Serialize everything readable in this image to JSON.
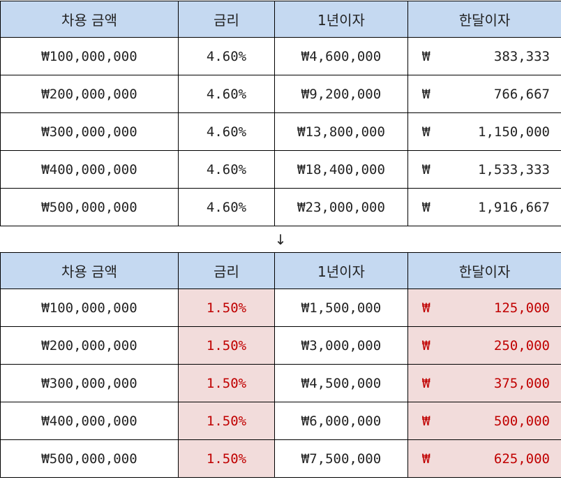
{
  "top_table": {
    "headers": [
      "차용 금액",
      "금리",
      "1년이자",
      "한달이자"
    ],
    "rows": [
      {
        "amount": "₩100,000,000",
        "rate": "4.60%",
        "yearly": "₩4,600,000",
        "currency": "₩",
        "monthly": "383,333"
      },
      {
        "amount": "₩200,000,000",
        "rate": "4.60%",
        "yearly": "₩9,200,000",
        "currency": "₩",
        "monthly": "766,667"
      },
      {
        "amount": "₩300,000,000",
        "rate": "4.60%",
        "yearly": "₩13,800,000",
        "currency": "₩",
        "monthly": "1,150,000"
      },
      {
        "amount": "₩400,000,000",
        "rate": "4.60%",
        "yearly": "₩18,400,000",
        "currency": "₩",
        "monthly": "1,533,333"
      },
      {
        "amount": "₩500,000,000",
        "rate": "4.60%",
        "yearly": "₩23,000,000",
        "currency": "₩",
        "monthly": "1,916,667"
      }
    ]
  },
  "arrow": "↓",
  "bottom_table": {
    "headers": [
      "차용 금액",
      "금리",
      "1년이자",
      "한달이자"
    ],
    "rows": [
      {
        "amount": "₩100,000,000",
        "rate": "1.50%",
        "yearly": "₩1,500,000",
        "currency": "₩",
        "monthly": "125,000"
      },
      {
        "amount": "₩200,000,000",
        "rate": "1.50%",
        "yearly": "₩3,000,000",
        "currency": "₩",
        "monthly": "250,000"
      },
      {
        "amount": "₩300,000,000",
        "rate": "1.50%",
        "yearly": "₩4,500,000",
        "currency": "₩",
        "monthly": "375,000"
      },
      {
        "amount": "₩400,000,000",
        "rate": "1.50%",
        "yearly": "₩6,000,000",
        "currency": "₩",
        "monthly": "500,000"
      },
      {
        "amount": "₩500,000,000",
        "rate": "1.50%",
        "yearly": "₩7,500,000",
        "currency": "₩",
        "monthly": "625,000"
      }
    ]
  },
  "colors": {
    "header_bg": "#c5d9f1",
    "highlight_bg": "#f2dcdb",
    "highlight_text": "#c00000"
  }
}
